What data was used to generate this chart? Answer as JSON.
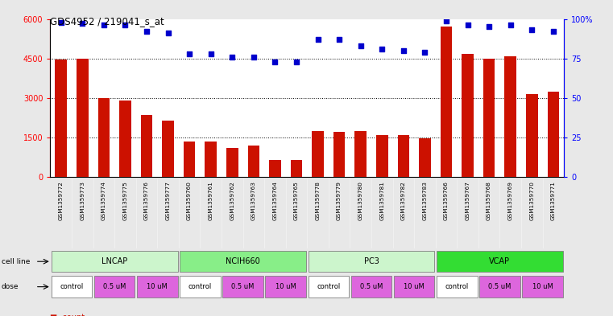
{
  "title": "GDS4952 / 219041_s_at",
  "samples": [
    "GSM1359772",
    "GSM1359773",
    "GSM1359774",
    "GSM1359775",
    "GSM1359776",
    "GSM1359777",
    "GSM1359760",
    "GSM1359761",
    "GSM1359762",
    "GSM1359763",
    "GSM1359764",
    "GSM1359765",
    "GSM1359778",
    "GSM1359779",
    "GSM1359780",
    "GSM1359781",
    "GSM1359782",
    "GSM1359783",
    "GSM1359766",
    "GSM1359767",
    "GSM1359768",
    "GSM1359769",
    "GSM1359770",
    "GSM1359771"
  ],
  "counts": [
    4450,
    4480,
    3000,
    2900,
    2350,
    2150,
    1350,
    1350,
    1100,
    1200,
    630,
    640,
    1750,
    1700,
    1750,
    1580,
    1600,
    1480,
    5720,
    4680,
    4480,
    4580,
    3150,
    3250
  ],
  "percentiles": [
    98,
    97,
    96,
    96,
    92,
    91,
    78,
    78,
    76,
    76,
    73,
    73,
    87,
    87,
    83,
    81,
    80,
    79,
    99,
    96,
    95,
    96,
    93,
    92
  ],
  "cell_lines": [
    {
      "name": "LNCAP",
      "start": 0,
      "end": 6,
      "color": "#ccf5cc"
    },
    {
      "name": "NCIH660",
      "start": 6,
      "end": 12,
      "color": "#88ee88"
    },
    {
      "name": "PC3",
      "start": 12,
      "end": 18,
      "color": "#ccf5cc"
    },
    {
      "name": "VCAP",
      "start": 18,
      "end": 24,
      "color": "#33dd33"
    }
  ],
  "dose_groups": [
    {
      "label": "control",
      "start": 0,
      "end": 2,
      "color": "#ffffff"
    },
    {
      "label": "0.5 uM",
      "start": 2,
      "end": 4,
      "color": "#dd66dd"
    },
    {
      "label": "10 uM",
      "start": 4,
      "end": 6,
      "color": "#dd66dd"
    },
    {
      "label": "control",
      "start": 6,
      "end": 8,
      "color": "#ffffff"
    },
    {
      "label": "0.5 uM",
      "start": 8,
      "end": 10,
      "color": "#dd66dd"
    },
    {
      "label": "10 uM",
      "start": 10,
      "end": 12,
      "color": "#dd66dd"
    },
    {
      "label": "control",
      "start": 12,
      "end": 14,
      "color": "#ffffff"
    },
    {
      "label": "0.5 uM",
      "start": 14,
      "end": 16,
      "color": "#dd66dd"
    },
    {
      "label": "10 uM",
      "start": 16,
      "end": 18,
      "color": "#dd66dd"
    },
    {
      "label": "control",
      "start": 18,
      "end": 20,
      "color": "#ffffff"
    },
    {
      "label": "0.5 uM",
      "start": 20,
      "end": 22,
      "color": "#dd66dd"
    },
    {
      "label": "10 uM",
      "start": 22,
      "end": 24,
      "color": "#dd66dd"
    }
  ],
  "bar_color": "#cc1100",
  "dot_color": "#0000cc",
  "ylim_left": [
    0,
    6000
  ],
  "ylim_right": [
    0,
    100
  ],
  "yticks_left": [
    0,
    1500,
    3000,
    4500,
    6000
  ],
  "yticks_right": [
    0,
    25,
    50,
    75,
    100
  ],
  "background_color": "#e8e8e8",
  "plot_bg_color": "#ffffff",
  "n_samples": 24
}
